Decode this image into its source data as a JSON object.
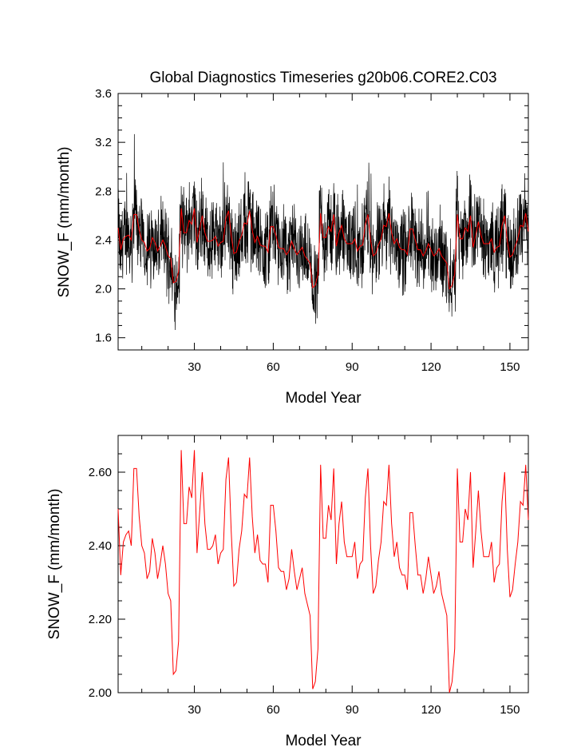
{
  "chart_data": [
    {
      "type": "line",
      "title": "Global Diagnostics Timeseries g20b06.CORE2.C03",
      "xlabel": "Model Year",
      "ylabel": "SNOW_F (mm/month)",
      "xlim": [
        1,
        157
      ],
      "ylim": [
        1.5,
        3.6
      ],
      "xticks": [
        30,
        60,
        90,
        120,
        150
      ],
      "yticks": [
        1.6,
        2.0,
        2.4,
        2.8,
        3.2,
        3.6
      ],
      "ytick_format": 1,
      "grid": false,
      "series": [
        {
          "name": "",
          "kind": "monthly",
          "color": "#000000",
          "note_values": "monthly values, one per month, x in model years; omitted when too dense (see script)"
        },
        {
          "name": "",
          "kind": "annual",
          "color": "#ff0000",
          "ref": "annual_mean"
        }
      ]
    },
    {
      "type": "line",
      "title": "",
      "xlabel": "Model Year",
      "ylabel": "SNOW_F (mm/month)",
      "xlim": [
        1,
        157
      ],
      "ylim": [
        2.0,
        2.7
      ],
      "xticks": [
        30,
        60,
        90,
        120,
        150
      ],
      "yticks": [
        2.0,
        2.2,
        2.4,
        2.6
      ],
      "ytick_format": 2,
      "grid": false,
      "series": [
        {
          "name": "",
          "kind": "annual",
          "color": "#ff0000",
          "ref": "annual_mean"
        }
      ]
    }
  ],
  "annual_mean": {
    "x": [
      1,
      2,
      3,
      4,
      5,
      6,
      7,
      8,
      9,
      10,
      11,
      12,
      13,
      14,
      15,
      16,
      17,
      18,
      19,
      20,
      21,
      22,
      23,
      24,
      25,
      26,
      27,
      28,
      29,
      30,
      31,
      32,
      33,
      34,
      35,
      36,
      37,
      38,
      39,
      40,
      41,
      42,
      43,
      44,
      45,
      46,
      47,
      48,
      49,
      50,
      51,
      52,
      53,
      54,
      55,
      56,
      57,
      58,
      59,
      60,
      61,
      62,
      63,
      64,
      65,
      66,
      67,
      68,
      69,
      70,
      71,
      72,
      73,
      74,
      75,
      76,
      77,
      78,
      79,
      80,
      81,
      82,
      83,
      84,
      85,
      86,
      87,
      88,
      89,
      90,
      91,
      92,
      93,
      94,
      95,
      96,
      97,
      98,
      99,
      100,
      101,
      102,
      103,
      104,
      105,
      106,
      107,
      108,
      109,
      110,
      111,
      112,
      113,
      114,
      115,
      116,
      117,
      118,
      119,
      120,
      121,
      122,
      123,
      124,
      125,
      126,
      127,
      128,
      129,
      130,
      131,
      132,
      133,
      134,
      135,
      136,
      137,
      138,
      139,
      140,
      141,
      142,
      143,
      144,
      145,
      146,
      147,
      148,
      149,
      150,
      151,
      152,
      153,
      154,
      155,
      156,
      157
    ],
    "y": [
      2.5,
      2.32,
      2.41,
      2.43,
      2.44,
      2.4,
      2.61,
      2.61,
      2.48,
      2.4,
      2.38,
      2.31,
      2.33,
      2.42,
      2.38,
      2.31,
      2.35,
      2.4,
      2.35,
      2.27,
      2.25,
      2.05,
      2.06,
      2.14,
      2.66,
      2.46,
      2.46,
      2.56,
      2.53,
      2.66,
      2.38,
      2.49,
      2.6,
      2.46,
      2.39,
      2.39,
      2.4,
      2.43,
      2.35,
      2.38,
      2.39,
      2.58,
      2.64,
      2.44,
      2.29,
      2.3,
      2.39,
      2.44,
      2.54,
      2.53,
      2.64,
      2.48,
      2.38,
      2.43,
      2.36,
      2.35,
      2.35,
      2.3,
      2.51,
      2.51,
      2.44,
      2.34,
      2.33,
      2.33,
      2.28,
      2.31,
      2.39,
      2.33,
      2.28,
      2.31,
      2.34,
      2.27,
      2.24,
      2.21,
      2.01,
      2.03,
      2.12,
      2.62,
      2.42,
      2.42,
      2.51,
      2.47,
      2.61,
      2.35,
      2.46,
      2.52,
      2.41,
      2.37,
      2.37,
      2.37,
      2.41,
      2.31,
      2.35,
      2.36,
      2.53,
      2.61,
      2.4,
      2.27,
      2.29,
      2.36,
      2.41,
      2.52,
      2.51,
      2.62,
      2.46,
      2.37,
      2.41,
      2.34,
      2.32,
      2.32,
      2.28,
      2.49,
      2.49,
      2.4,
      2.32,
      2.32,
      2.27,
      2.31,
      2.37,
      2.32,
      2.27,
      2.29,
      2.33,
      2.27,
      2.24,
      2.21,
      2.0,
      2.03,
      2.12,
      2.61,
      2.41,
      2.41,
      2.5,
      2.47,
      2.6,
      2.34,
      2.44,
      2.55,
      2.44,
      2.37,
      2.37,
      2.37,
      2.41,
      2.3,
      2.34,
      2.35,
      2.52,
      2.6,
      2.39,
      2.26,
      2.28,
      2.35,
      2.41,
      2.52,
      2.51,
      2.62,
      2.47
    ]
  }
}
